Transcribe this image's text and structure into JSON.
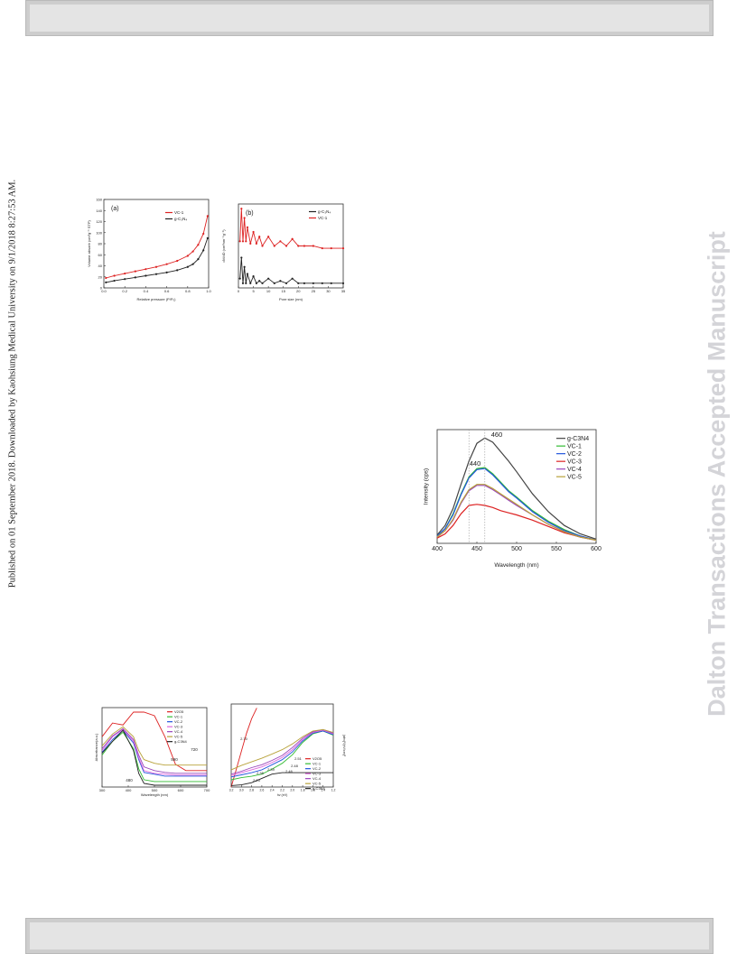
{
  "page": {
    "published_note": "Published on 01 September 2018. Downloaded by Kaohsiung Medical University on 9/1/2018 8:27:53 AM.",
    "watermark": "Dalton Transactions Accepted Manuscript"
  },
  "chart_data": [
    {
      "type": "line",
      "panel_label": "(a)",
      "xlabel": "Relative pressure (P/P₀)",
      "ylabel": "Volume absorb (cm³g⁻¹ STP)",
      "xlim": [
        0.0,
        1.0
      ],
      "ylim": [
        0,
        160
      ],
      "xticks": [
        "0.0",
        "0.2",
        "0.4",
        "0.6",
        "0.8",
        "1.0"
      ],
      "yticks": [
        "0",
        "20",
        "40",
        "60",
        "80",
        "100",
        "120",
        "140",
        "160"
      ],
      "legend": [
        "VC-1",
        "g-C₃N₄"
      ],
      "series": [
        {
          "name": "VC-1",
          "color": "#dd2222",
          "x": [
            0.02,
            0.1,
            0.2,
            0.3,
            0.4,
            0.5,
            0.6,
            0.7,
            0.8,
            0.85,
            0.9,
            0.95,
            0.99
          ],
          "y": [
            18,
            22,
            26,
            30,
            34,
            38,
            43,
            49,
            58,
            66,
            78,
            98,
            130
          ]
        },
        {
          "name": "g-C₃N₄",
          "color": "#222222",
          "x": [
            0.02,
            0.1,
            0.2,
            0.3,
            0.4,
            0.5,
            0.6,
            0.7,
            0.8,
            0.85,
            0.9,
            0.95,
            0.99
          ],
          "y": [
            10,
            13,
            16,
            19,
            22,
            25,
            28,
            32,
            38,
            43,
            52,
            68,
            90
          ]
        }
      ]
    },
    {
      "type": "line",
      "panel_label": "(b)",
      "xlabel": "Pore size (nm)",
      "ylabel": "dV/dD (cm³nm⁻¹g⁻¹)",
      "xlim": [
        0,
        35
      ],
      "ylim": [
        0,
        0.036
      ],
      "xticks": [
        "0",
        "5",
        "10",
        "15",
        "20",
        "25",
        "30",
        "35"
      ],
      "legend": [
        "g-C₃N₄",
        "VC-1"
      ],
      "series": [
        {
          "name": "g-C₃N₄",
          "color": "#222222",
          "x": [
            0.5,
            1,
            1.5,
            2,
            2.5,
            3,
            4,
            5,
            6,
            7,
            8,
            10,
            12,
            14,
            16,
            18,
            20,
            22,
            25,
            28,
            31,
            35
          ],
          "y": [
            0.004,
            0.013,
            0.002,
            0.009,
            0.002,
            0.006,
            0.002,
            0.005,
            0.002,
            0.003,
            0.002,
            0.004,
            0.002,
            0.003,
            0.002,
            0.004,
            0.002,
            0.002,
            0.002,
            0.002,
            0.002,
            0.002
          ]
        },
        {
          "name": "VC-1",
          "color": "#dd2222",
          "x": [
            0.5,
            1,
            1.5,
            2,
            2.5,
            3,
            4,
            5,
            6,
            7,
            8,
            10,
            12,
            14,
            16,
            18,
            20,
            22,
            25,
            28,
            31,
            35
          ],
          "y": [
            0.02,
            0.034,
            0.02,
            0.03,
            0.02,
            0.026,
            0.019,
            0.024,
            0.019,
            0.022,
            0.018,
            0.022,
            0.018,
            0.02,
            0.018,
            0.021,
            0.018,
            0.018,
            0.018,
            0.017,
            0.017,
            0.017
          ]
        }
      ]
    },
    {
      "type": "line",
      "xlabel": "Wavelength (nm)",
      "ylabel": "Intensity (cps)",
      "xlim": [
        400,
        600
      ],
      "xticks": [
        "400",
        "450",
        "500",
        "550",
        "600"
      ],
      "annotations": [
        "460",
        "440"
      ],
      "legend": [
        "g-C3N4",
        "VC-1",
        "VC-2",
        "VC-3",
        "VC-4",
        "VC-5"
      ],
      "series": [
        {
          "name": "g-C3N4",
          "color": "#444444",
          "x": [
            400,
            410,
            420,
            430,
            440,
            450,
            460,
            470,
            480,
            490,
            500,
            520,
            540,
            560,
            580,
            600
          ],
          "y": [
            0.08,
            0.17,
            0.33,
            0.56,
            0.78,
            0.95,
            1.0,
            0.96,
            0.87,
            0.78,
            0.68,
            0.47,
            0.3,
            0.17,
            0.09,
            0.04
          ]
        },
        {
          "name": "VC-1",
          "color": "#33bb33",
          "x": [
            400,
            410,
            420,
            430,
            440,
            450,
            460,
            470,
            480,
            490,
            500,
            520,
            540,
            560,
            580,
            600
          ],
          "y": [
            0.07,
            0.14,
            0.28,
            0.47,
            0.63,
            0.71,
            0.72,
            0.66,
            0.58,
            0.5,
            0.44,
            0.31,
            0.21,
            0.13,
            0.07,
            0.03
          ]
        },
        {
          "name": "VC-2",
          "color": "#2255dd",
          "x": [
            400,
            410,
            420,
            430,
            440,
            450,
            460,
            470,
            480,
            490,
            500,
            520,
            540,
            560,
            580,
            600
          ],
          "y": [
            0.07,
            0.14,
            0.27,
            0.46,
            0.62,
            0.7,
            0.71,
            0.65,
            0.57,
            0.49,
            0.43,
            0.3,
            0.2,
            0.12,
            0.07,
            0.03
          ]
        },
        {
          "name": "VC-3",
          "color": "#dd2222",
          "x": [
            400,
            410,
            420,
            430,
            440,
            450,
            460,
            470,
            480,
            490,
            500,
            520,
            540,
            560,
            580,
            600
          ],
          "y": [
            0.05,
            0.09,
            0.17,
            0.28,
            0.36,
            0.37,
            0.36,
            0.34,
            0.31,
            0.29,
            0.27,
            0.22,
            0.16,
            0.1,
            0.06,
            0.03
          ]
        },
        {
          "name": "VC-4",
          "color": "#9944bb",
          "x": [
            400,
            410,
            420,
            430,
            440,
            450,
            460,
            470,
            480,
            490,
            500,
            520,
            540,
            560,
            580,
            600
          ],
          "y": [
            0.06,
            0.12,
            0.22,
            0.38,
            0.5,
            0.55,
            0.55,
            0.51,
            0.46,
            0.41,
            0.36,
            0.27,
            0.18,
            0.11,
            0.06,
            0.03
          ]
        },
        {
          "name": "VC-5",
          "color": "#b8a23a",
          "x": [
            400,
            410,
            420,
            430,
            440,
            450,
            460,
            470,
            480,
            490,
            500,
            520,
            540,
            560,
            580,
            600
          ],
          "y": [
            0.06,
            0.12,
            0.23,
            0.39,
            0.51,
            0.56,
            0.56,
            0.52,
            0.47,
            0.42,
            0.37,
            0.27,
            0.18,
            0.11,
            0.06,
            0.03
          ]
        }
      ]
    },
    {
      "type": "line",
      "xlabel": "Wavelength (nm)",
      "ylabel": "Absorbance(a.u.)",
      "xlim": [
        300,
        700
      ],
      "xticks": [
        "300",
        "400",
        "500",
        "600",
        "700"
      ],
      "annotations": [
        "590",
        "480",
        "720"
      ],
      "legend": [
        "V2O5",
        "VC-1",
        "VC-2",
        "VC-3",
        "VC-4",
        "VC-5",
        "g-C3N4"
      ],
      "series": [
        {
          "name": "V2O5",
          "color": "#dd2222",
          "x": [
            300,
            340,
            380,
            420,
            460,
            500,
            540,
            580,
            620,
            660,
            700
          ],
          "y": [
            0.55,
            0.7,
            0.68,
            0.82,
            0.82,
            0.78,
            0.55,
            0.25,
            0.18,
            0.18,
            0.18
          ]
        },
        {
          "name": "VC-1",
          "color": "#33bb33",
          "x": [
            300,
            340,
            380,
            420,
            440,
            460,
            500,
            540,
            580,
            620,
            660,
            700
          ],
          "y": [
            0.35,
            0.5,
            0.6,
            0.42,
            0.2,
            0.08,
            0.06,
            0.06,
            0.06,
            0.06,
            0.06,
            0.06
          ]
        },
        {
          "name": "VC-2",
          "color": "#2255dd",
          "x": [
            300,
            340,
            380,
            420,
            440,
            460,
            500,
            540,
            580,
            620,
            660,
            700
          ],
          "y": [
            0.38,
            0.52,
            0.62,
            0.48,
            0.3,
            0.16,
            0.14,
            0.12,
            0.12,
            0.12,
            0.12,
            0.12
          ]
        },
        {
          "name": "VC-3",
          "color": "#dd66dd",
          "x": [
            300,
            340,
            380,
            420,
            440,
            460,
            500,
            540,
            580,
            620,
            660,
            700
          ],
          "y": [
            0.4,
            0.55,
            0.63,
            0.5,
            0.32,
            0.18,
            0.15,
            0.14,
            0.13,
            0.13,
            0.13,
            0.13
          ]
        },
        {
          "name": "VC-4",
          "color": "#9944bb",
          "x": [
            300,
            340,
            380,
            420,
            440,
            460,
            500,
            540,
            580,
            620,
            660,
            700
          ],
          "y": [
            0.42,
            0.56,
            0.64,
            0.52,
            0.35,
            0.22,
            0.18,
            0.16,
            0.15,
            0.15,
            0.15,
            0.15
          ]
        },
        {
          "name": "VC-5",
          "color": "#b8a23a",
          "x": [
            300,
            340,
            380,
            420,
            440,
            460,
            500,
            540,
            580,
            620,
            660,
            700
          ],
          "y": [
            0.45,
            0.58,
            0.66,
            0.55,
            0.4,
            0.3,
            0.26,
            0.24,
            0.24,
            0.24,
            0.24,
            0.24
          ]
        },
        {
          "name": "g-C3N4",
          "color": "#222222",
          "x": [
            300,
            340,
            380,
            420,
            440,
            460,
            500,
            540,
            580,
            620,
            660,
            700
          ],
          "y": [
            0.37,
            0.5,
            0.62,
            0.4,
            0.15,
            0.04,
            0.02,
            0.02,
            0.02,
            0.02,
            0.02,
            0.02
          ]
        }
      ]
    },
    {
      "type": "line",
      "xlabel": "hv (eV)",
      "ylabel": "(αhv)²/(eV/cm)²",
      "xlim": [
        3.2,
        1.2
      ],
      "xticks": [
        "3.2",
        "3.0",
        "2.8",
        "2.6",
        "2.4",
        "2.2",
        "2.0",
        "1.8",
        "1.6",
        "1.4",
        "1.2"
      ],
      "annotations": [
        "2.70",
        "2.51",
        "2.39",
        "2.35",
        "2.25",
        "2.48",
        "2.46"
      ],
      "legend": [
        "V2O5",
        "VC-1",
        "VC-2",
        "VC-3",
        "VC-4",
        "VC-5",
        "g-C3N4"
      ],
      "series": [
        {
          "name": "V2O5",
          "color": "#dd2222",
          "x": [
            3.2,
            3.1,
            3.0,
            2.9,
            2.8,
            2.7
          ],
          "y": [
            0.0,
            0.25,
            0.5,
            0.75,
            0.95,
            1.1
          ]
        },
        {
          "name": "VC-1",
          "color": "#33bb33",
          "x": [
            3.2,
            3.0,
            2.8,
            2.6,
            2.4,
            2.2,
            2.0,
            1.8,
            1.6,
            1.4,
            1.2
          ],
          "y": [
            0.1,
            0.13,
            0.15,
            0.18,
            0.25,
            0.33,
            0.45,
            0.62,
            0.74,
            0.78,
            0.72
          ]
        },
        {
          "name": "VC-2",
          "color": "#2255dd",
          "x": [
            3.2,
            3.0,
            2.8,
            2.6,
            2.4,
            2.2,
            2.0,
            1.8,
            1.6,
            1.4,
            1.2
          ],
          "y": [
            0.14,
            0.17,
            0.2,
            0.24,
            0.31,
            0.38,
            0.49,
            0.64,
            0.75,
            0.78,
            0.73
          ]
        },
        {
          "name": "VC-3",
          "color": "#dd66dd",
          "x": [
            3.2,
            3.0,
            2.8,
            2.6,
            2.4,
            2.2,
            2.0,
            1.8,
            1.6,
            1.4,
            1.2
          ],
          "y": [
            0.16,
            0.2,
            0.24,
            0.28,
            0.34,
            0.41,
            0.52,
            0.66,
            0.76,
            0.79,
            0.74
          ]
        },
        {
          "name": "VC-4",
          "color": "#9944bb",
          "x": [
            3.2,
            3.0,
            2.8,
            2.6,
            2.4,
            2.2,
            2.0,
            1.8,
            1.6,
            1.4,
            1.2
          ],
          "y": [
            0.18,
            0.22,
            0.27,
            0.31,
            0.37,
            0.44,
            0.55,
            0.68,
            0.77,
            0.8,
            0.75
          ]
        },
        {
          "name": "VC-5",
          "color": "#b8a23a",
          "x": [
            3.2,
            3.0,
            2.8,
            2.6,
            2.4,
            2.2,
            2.0,
            1.8,
            1.6,
            1.4,
            1.2
          ],
          "y": [
            0.24,
            0.3,
            0.35,
            0.4,
            0.46,
            0.52,
            0.6,
            0.7,
            0.78,
            0.8,
            0.76
          ]
        },
        {
          "name": "g-C3N4",
          "color": "#222222",
          "x": [
            3.2,
            3.0,
            2.8,
            2.6,
            2.4,
            2.2,
            2.0,
            1.8,
            1.6,
            1.4,
            1.2
          ],
          "y": [
            0.02,
            0.03,
            0.06,
            0.12,
            0.18,
            0.2,
            0.2,
            0.2,
            0.2,
            0.2,
            0.2
          ]
        }
      ]
    }
  ]
}
